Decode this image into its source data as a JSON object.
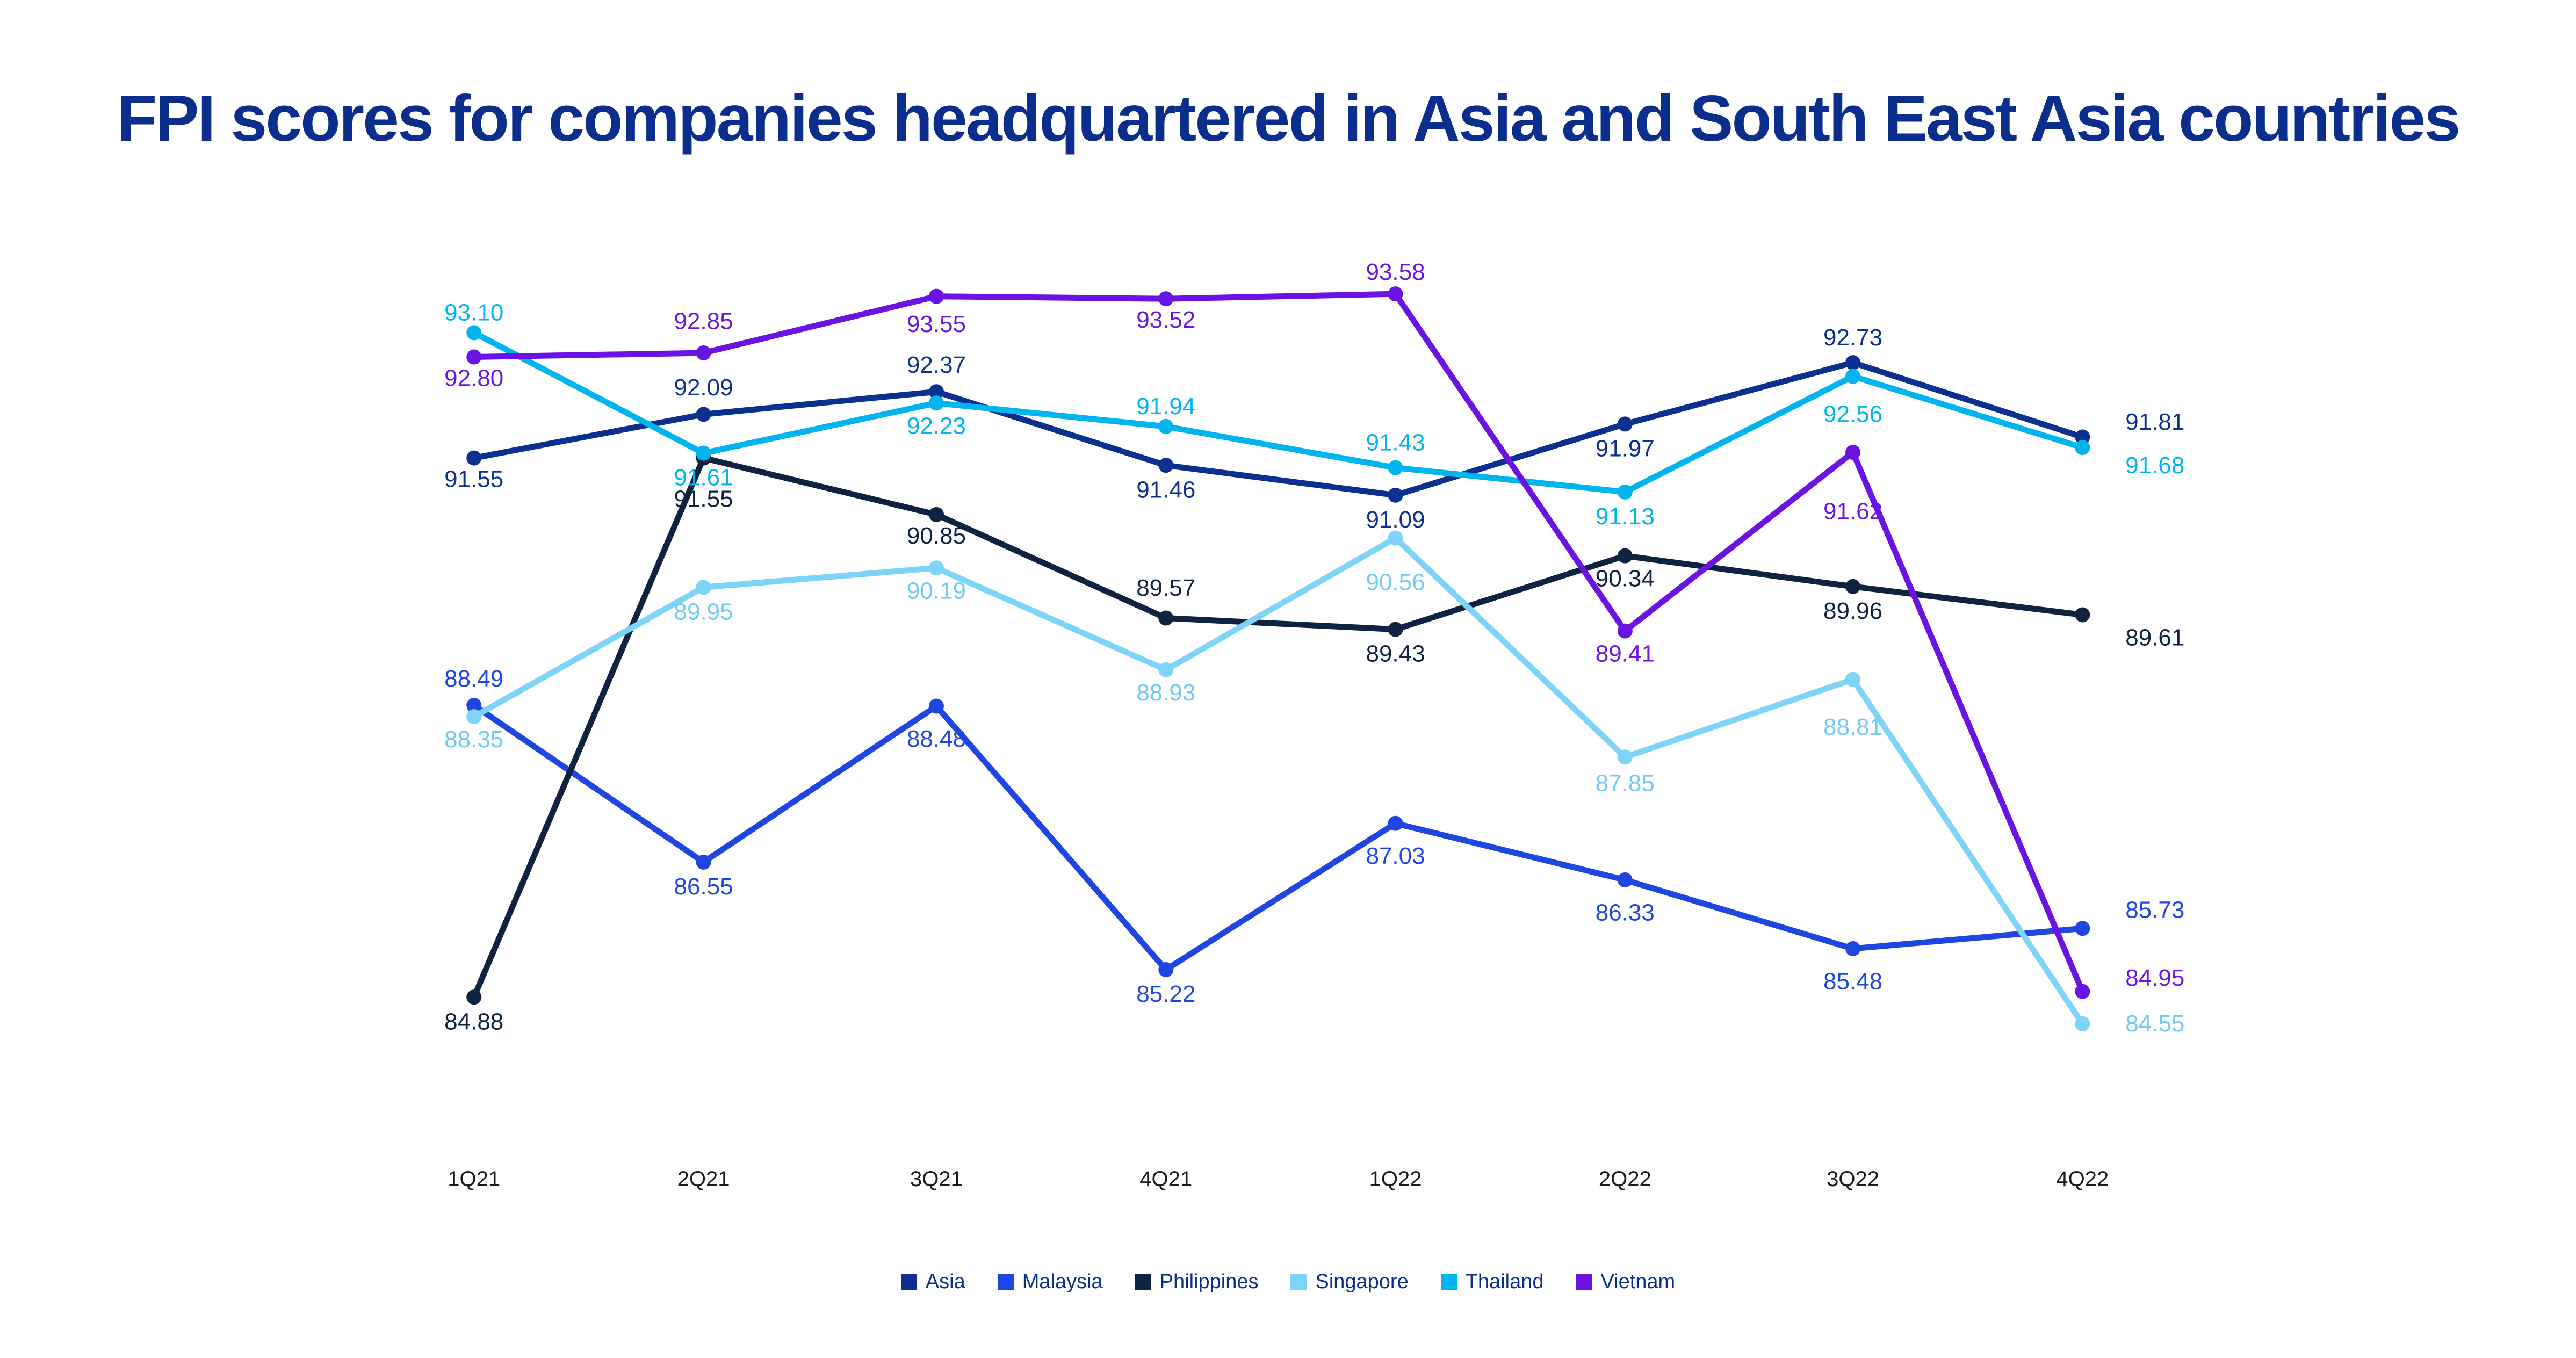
{
  "chart_data": {
    "type": "line",
    "title": "FPI scores for companies headquartered in Asia and South East Asia countries",
    "xlabel": "",
    "ylabel": "",
    "categories": [
      "1Q21",
      "2Q21",
      "3Q21",
      "4Q21",
      "1Q22",
      "2Q22",
      "3Q22",
      "4Q22"
    ],
    "ylim": [
      84.55,
      93.58
    ],
    "grid": false,
    "legend_position": "bottom",
    "series": [
      {
        "name": "Asia",
        "color": "#0b3090",
        "values": [
          91.55,
          92.09,
          92.37,
          91.46,
          91.09,
          91.97,
          92.73,
          91.81
        ],
        "labels": [
          "91.55",
          "92.09",
          "92.37",
          "91.46",
          "91.09",
          "91.97",
          "92.73",
          "91.81"
        ]
      },
      {
        "name": "Malaysia",
        "color": "#1f46e0",
        "values": [
          88.49,
          86.55,
          88.48,
          85.22,
          87.03,
          86.33,
          85.48,
          85.73
        ],
        "labels": [
          "88.49",
          "86.55",
          "88.48",
          "85.22",
          "87.03",
          "86.33",
          "85.48",
          "85.73"
        ]
      },
      {
        "name": "Philippines",
        "color": "#0f2240",
        "values": [
          84.88,
          91.55,
          90.85,
          89.57,
          89.43,
          90.34,
          89.96,
          89.61
        ],
        "labels": [
          "84.88",
          "91.55",
          "90.85",
          "89.57",
          "89.43",
          "90.34",
          "89.96",
          "89.61"
        ]
      },
      {
        "name": "Singapore",
        "color": "#7dd3f8",
        "values": [
          88.35,
          89.95,
          90.19,
          88.93,
          90.56,
          87.85,
          88.81,
          84.55
        ],
        "labels": [
          "88.35",
          "89.95",
          "90.19",
          "88.93",
          "90.56",
          "87.85",
          "88.81",
          "84.55"
        ]
      },
      {
        "name": "Thailand",
        "color": "#00b4f0",
        "values": [
          93.1,
          91.61,
          92.23,
          91.94,
          91.43,
          91.13,
          92.56,
          91.68
        ],
        "labels": [
          "93.10",
          "91.61",
          "92.23",
          "91.94",
          "91.43",
          "91.13",
          "92.56",
          "91.68"
        ]
      },
      {
        "name": "Vietnam",
        "color": "#6a14e4",
        "values": [
          92.8,
          92.85,
          93.55,
          93.52,
          93.58,
          89.41,
          91.62,
          84.95
        ],
        "labels": [
          "92.80",
          "92.85",
          "93.55",
          "93.52",
          "93.58",
          "89.41",
          "91.62",
          "84.95"
        ]
      }
    ]
  }
}
